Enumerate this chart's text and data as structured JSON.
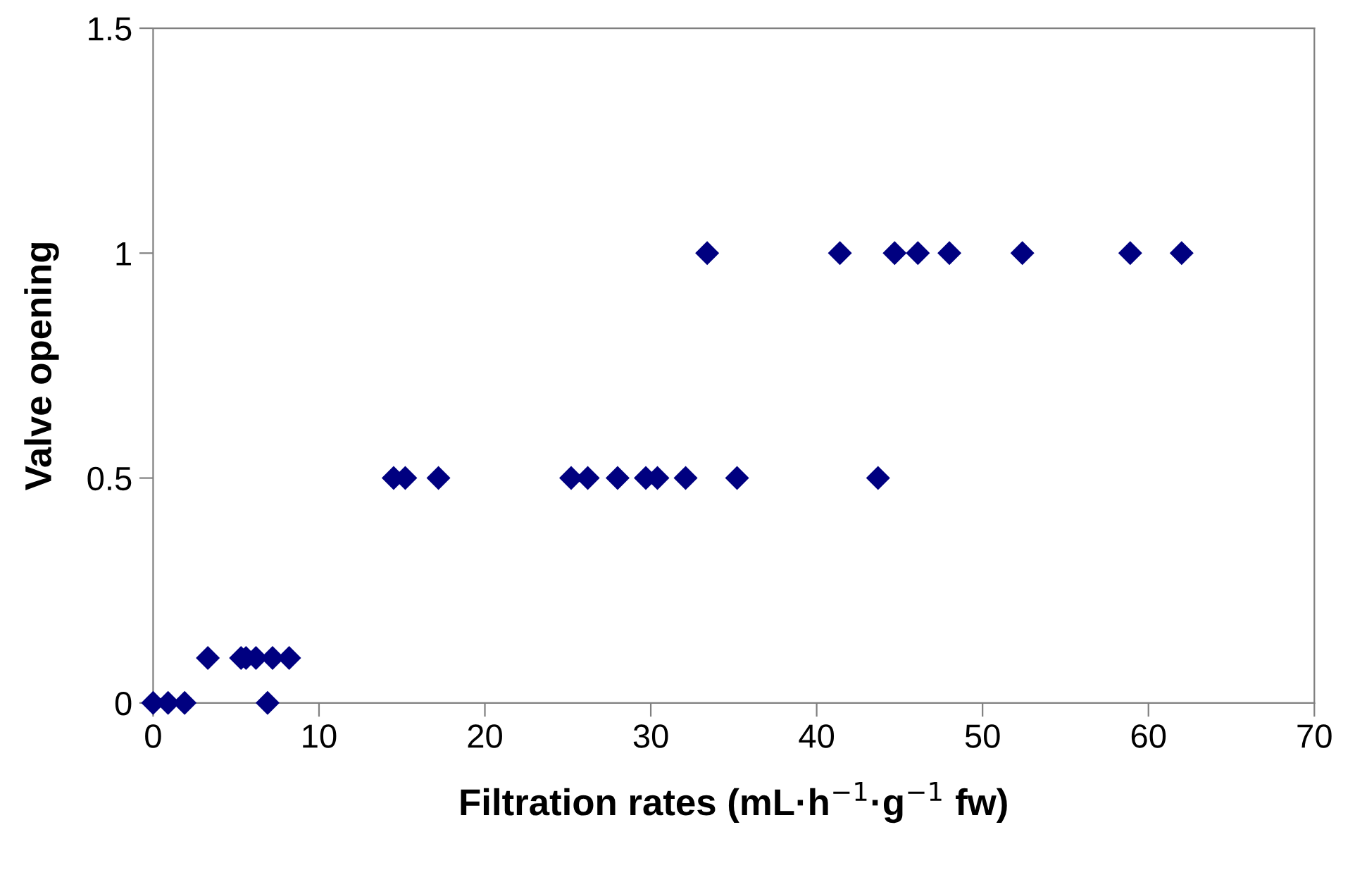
{
  "chart_data": {
    "type": "scatter",
    "xlabel": "Filtration rates (mL·h$^{−1}$·g$^{−1}$ fw)",
    "ylabel": "Valve opening",
    "x": [
      0,
      0.9,
      1.9,
      6.9,
      3.3,
      5.3,
      5.6,
      6.2,
      7.2,
      8.2,
      14.5,
      15.2,
      17.2,
      25.2,
      26.2,
      28.0,
      29.7,
      30.4,
      32.1,
      35.2,
      43.7,
      33.4,
      41.4,
      44.7,
      46.1,
      48.0,
      52.4,
      58.9,
      62.0
    ],
    "values": [
      0,
      0,
      0,
      0,
      0.1,
      0.1,
      0.1,
      0.1,
      0.1,
      0.1,
      0.5,
      0.5,
      0.5,
      0.5,
      0.5,
      0.5,
      0.5,
      0.5,
      0.5,
      0.5,
      0.5,
      1,
      1,
      1,
      1,
      1,
      1,
      1,
      1
    ],
    "color": "#000080",
    "marker": "diamond",
    "grid": false,
    "legend": false,
    "xlim": [
      0,
      70
    ],
    "ylim": [
      0,
      1.5
    ],
    "xticks": [
      0,
      10,
      20,
      30,
      40,
      50,
      60,
      70
    ],
    "yticks": [
      0,
      0.5,
      1,
      1.5
    ]
  }
}
